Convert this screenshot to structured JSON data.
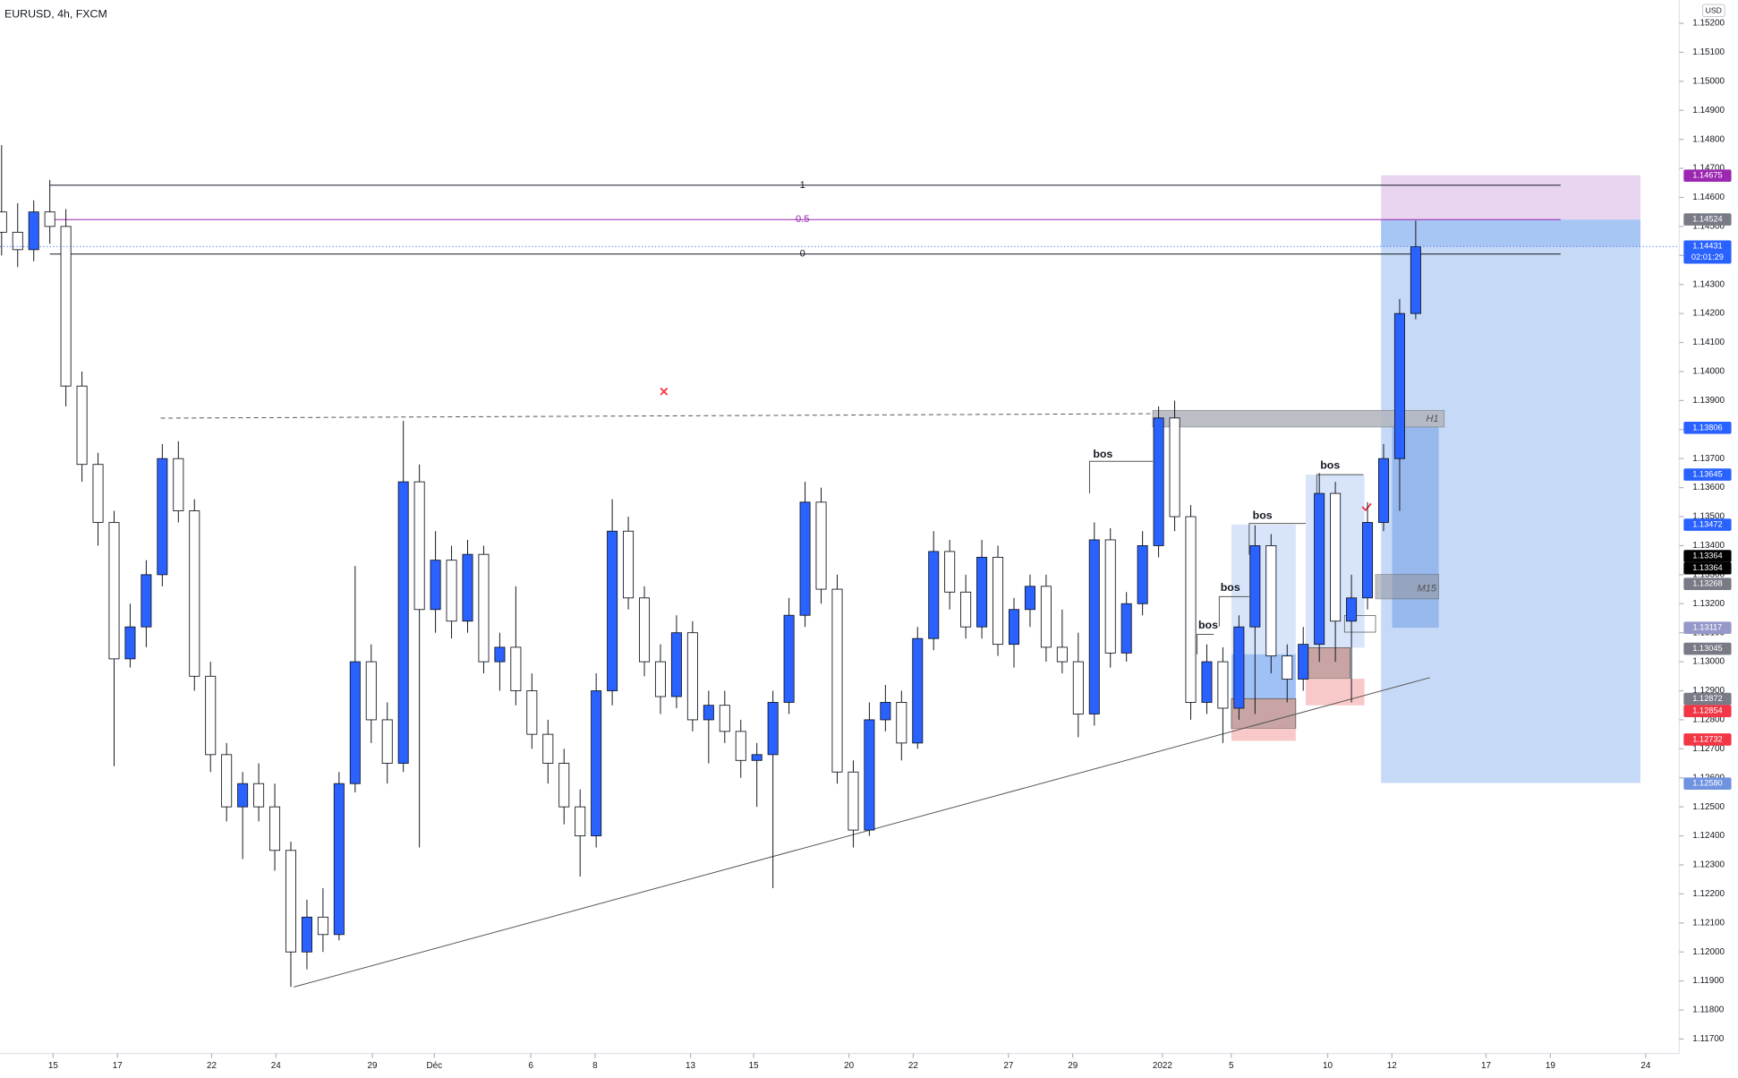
{
  "chart_data": {
    "type": "candlestick",
    "title": "EURUSD, 4h, FXCM",
    "y_unit": "USD",
    "up_color": "#2962ff",
    "down_color": "#ffffff",
    "wick_color": "#131722",
    "grid": false,
    "xlim": [
      -0.1,
      104.4
    ],
    "ylim": [
      1.1165,
      1.1528
    ],
    "xticks": [
      {
        "value": 3.21,
        "label": "15"
      },
      {
        "value": 7.21,
        "label": "17"
      },
      {
        "value": 13.07,
        "label": "22"
      },
      {
        "value": 17.07,
        "label": "24"
      },
      {
        "value": 23.07,
        "label": "29"
      },
      {
        "value": 26.93,
        "label": "Déc"
      },
      {
        "value": 32.93,
        "label": "6"
      },
      {
        "value": 36.93,
        "label": "8"
      },
      {
        "value": 42.87,
        "label": "13"
      },
      {
        "value": 46.8,
        "label": "15"
      },
      {
        "value": 52.73,
        "label": "20"
      },
      {
        "value": 56.73,
        "label": "22"
      },
      {
        "value": 62.66,
        "label": "27"
      },
      {
        "value": 66.66,
        "label": "29"
      },
      {
        "value": 72.24,
        "label": "2022"
      },
      {
        "value": 76.52,
        "label": "5"
      },
      {
        "value": 82.52,
        "label": "10"
      },
      {
        "value": 86.52,
        "label": "12"
      },
      {
        "value": 92.38,
        "label": "17"
      },
      {
        "value": 96.38,
        "label": "19"
      },
      {
        "value": 102.31,
        "label": "24"
      }
    ],
    "yticks": [
      {
        "value": 1.152,
        "label": "1.15200"
      },
      {
        "value": 1.151,
        "label": "1.15100"
      },
      {
        "value": 1.15,
        "label": "1.15000"
      },
      {
        "value": 1.149,
        "label": "1.14900"
      },
      {
        "value": 1.148,
        "label": "1.14800"
      },
      {
        "value": 1.147,
        "label": "1.14700"
      },
      {
        "value": 1.146,
        "label": "1.14600"
      },
      {
        "value": 1.145,
        "label": "1.14500"
      },
      {
        "value": 1.144,
        "label": "1.14400"
      },
      {
        "value": 1.143,
        "label": "1.14300"
      },
      {
        "value": 1.142,
        "label": "1.14200"
      },
      {
        "value": 1.141,
        "label": "1.14100"
      },
      {
        "value": 1.14,
        "label": "1.14000"
      },
      {
        "value": 1.139,
        "label": "1.13900"
      },
      {
        "value": 1.138,
        "label": "1.13800"
      },
      {
        "value": 1.137,
        "label": "1.13700"
      },
      {
        "value": 1.136,
        "label": "1.13600"
      },
      {
        "value": 1.135,
        "label": "1.13500"
      },
      {
        "value": 1.134,
        "label": "1.13400"
      },
      {
        "value": 1.133,
        "label": "1.13300"
      },
      {
        "value": 1.132,
        "label": "1.13200"
      },
      {
        "value": 1.131,
        "label": "1.13100"
      },
      {
        "value": 1.13,
        "label": "1.13000"
      },
      {
        "value": 1.129,
        "label": "1.12900"
      },
      {
        "value": 1.128,
        "label": "1.12800"
      },
      {
        "value": 1.127,
        "label": "1.12700"
      },
      {
        "value": 1.126,
        "label": "1.12600"
      },
      {
        "value": 1.125,
        "label": "1.12500"
      },
      {
        "value": 1.124,
        "label": "1.12400"
      },
      {
        "value": 1.123,
        "label": "1.12300"
      },
      {
        "value": 1.122,
        "label": "1.12200"
      },
      {
        "value": 1.121,
        "label": "1.12100"
      },
      {
        "value": 1.12,
        "label": "1.12000"
      },
      {
        "value": 1.119,
        "label": "1.11900"
      },
      {
        "value": 1.118,
        "label": "1.11800"
      },
      {
        "value": 1.117,
        "label": "1.11700"
      }
    ],
    "ohlc": [
      [
        1.1455,
        1.1478,
        1.144,
        1.1448
      ],
      [
        1.1448,
        1.1458,
        1.1436,
        1.1442
      ],
      [
        1.1442,
        1.1459,
        1.1438,
        1.1455
      ],
      [
        1.1455,
        1.1466,
        1.1444,
        1.145
      ],
      [
        1.145,
        1.1456,
        1.1388,
        1.1395
      ],
      [
        1.1395,
        1.14,
        1.1362,
        1.1368
      ],
      [
        1.1368,
        1.1372,
        1.134,
        1.1348
      ],
      [
        1.1348,
        1.1352,
        1.1264,
        1.1301
      ],
      [
        1.1301,
        1.132,
        1.1298,
        1.1312
      ],
      [
        1.1312,
        1.1335,
        1.1305,
        1.133
      ],
      [
        1.133,
        1.1375,
        1.1326,
        1.137
      ],
      [
        1.137,
        1.1376,
        1.1348,
        1.1352
      ],
      [
        1.1352,
        1.1356,
        1.129,
        1.1295
      ],
      [
        1.1295,
        1.13,
        1.1262,
        1.1268
      ],
      [
        1.1268,
        1.1272,
        1.1245,
        1.125
      ],
      [
        1.125,
        1.1262,
        1.1232,
        1.1258
      ],
      [
        1.1258,
        1.1265,
        1.1245,
        1.125
      ],
      [
        1.125,
        1.1258,
        1.1228,
        1.1235
      ],
      [
        1.1235,
        1.1238,
        1.1188,
        1.12
      ],
      [
        1.12,
        1.1218,
        1.1194,
        1.1212
      ],
      [
        1.1212,
        1.1222,
        1.12,
        1.1206
      ],
      [
        1.1206,
        1.1262,
        1.1204,
        1.1258
      ],
      [
        1.1258,
        1.1333,
        1.1255,
        1.13
      ],
      [
        1.13,
        1.1306,
        1.1272,
        1.128
      ],
      [
        1.128,
        1.1286,
        1.1258,
        1.1265
      ],
      [
        1.1265,
        1.1383,
        1.1262,
        1.1362
      ],
      [
        1.1362,
        1.1368,
        1.1236,
        1.1318
      ],
      [
        1.1318,
        1.1345,
        1.131,
        1.1335
      ],
      [
        1.1335,
        1.134,
        1.1308,
        1.1314
      ],
      [
        1.1314,
        1.1342,
        1.131,
        1.1337
      ],
      [
        1.1337,
        1.134,
        1.1296,
        1.13
      ],
      [
        1.13,
        1.131,
        1.129,
        1.1305
      ],
      [
        1.1305,
        1.1326,
        1.1285,
        1.129
      ],
      [
        1.129,
        1.1296,
        1.127,
        1.1275
      ],
      [
        1.1275,
        1.128,
        1.1258,
        1.1265
      ],
      [
        1.1265,
        1.127,
        1.1244,
        1.125
      ],
      [
        1.125,
        1.1256,
        1.1226,
        1.124
      ],
      [
        1.124,
        1.1296,
        1.1236,
        1.129
      ],
      [
        1.129,
        1.1356,
        1.1285,
        1.1345
      ],
      [
        1.1345,
        1.135,
        1.1318,
        1.1322
      ],
      [
        1.1322,
        1.1326,
        1.1295,
        1.13
      ],
      [
        1.13,
        1.1306,
        1.1282,
        1.1288
      ],
      [
        1.1288,
        1.1316,
        1.1284,
        1.131
      ],
      [
        1.131,
        1.1314,
        1.1276,
        1.128
      ],
      [
        1.128,
        1.129,
        1.1265,
        1.1285
      ],
      [
        1.1285,
        1.129,
        1.1272,
        1.1276
      ],
      [
        1.1276,
        1.128,
        1.126,
        1.1266
      ],
      [
        1.1266,
        1.1272,
        1.125,
        1.1268
      ],
      [
        1.1268,
        1.129,
        1.1222,
        1.1286
      ],
      [
        1.1286,
        1.1322,
        1.1282,
        1.1316
      ],
      [
        1.1316,
        1.1362,
        1.1312,
        1.1355
      ],
      [
        1.1355,
        1.136,
        1.132,
        1.1325
      ],
      [
        1.1325,
        1.133,
        1.1258,
        1.1262
      ],
      [
        1.1262,
        1.1266,
        1.1236,
        1.1242
      ],
      [
        1.1242,
        1.1286,
        1.124,
        1.128
      ],
      [
        1.128,
        1.1292,
        1.1276,
        1.1286
      ],
      [
        1.1286,
        1.129,
        1.1266,
        1.1272
      ],
      [
        1.1272,
        1.1312,
        1.127,
        1.1308
      ],
      [
        1.1308,
        1.1345,
        1.1304,
        1.1338
      ],
      [
        1.1338,
        1.1342,
        1.1318,
        1.1324
      ],
      [
        1.1324,
        1.133,
        1.1308,
        1.1312
      ],
      [
        1.1312,
        1.1342,
        1.1308,
        1.1336
      ],
      [
        1.1336,
        1.134,
        1.1302,
        1.1306
      ],
      [
        1.1306,
        1.1322,
        1.1298,
        1.1318
      ],
      [
        1.1318,
        1.133,
        1.1312,
        1.1326
      ],
      [
        1.1326,
        1.133,
        1.13,
        1.1305
      ],
      [
        1.1305,
        1.1318,
        1.1296,
        1.13
      ],
      [
        1.13,
        1.131,
        1.1274,
        1.1282
      ],
      [
        1.1282,
        1.1348,
        1.1278,
        1.1342
      ],
      [
        1.1342,
        1.1346,
        1.1298,
        1.1303
      ],
      [
        1.1303,
        1.1324,
        1.13,
        1.132
      ],
      [
        1.132,
        1.1345,
        1.1316,
        1.134
      ],
      [
        1.134,
        1.1388,
        1.1336,
        1.1384
      ],
      [
        1.1384,
        1.139,
        1.1345,
        1.135
      ],
      [
        1.135,
        1.1354,
        1.128,
        1.1286
      ],
      [
        1.1286,
        1.1306,
        1.1282,
        1.13
      ],
      [
        1.13,
        1.1305,
        1.1272,
        1.1284
      ],
      [
        1.1284,
        1.1316,
        1.128,
        1.1312
      ],
      [
        1.1312,
        1.1347,
        1.1282,
        1.134
      ],
      [
        1.134,
        1.1344,
        1.1296,
        1.1302
      ],
      [
        1.1302,
        1.1306,
        1.1286,
        1.1294
      ],
      [
        1.1294,
        1.1312,
        1.129,
        1.1306
      ],
      [
        1.1306,
        1.1365,
        1.13,
        1.1358
      ],
      [
        1.1358,
        1.1362,
        1.13,
        1.1314
      ],
      [
        1.1314,
        1.133,
        1.1286,
        1.1322
      ],
      [
        1.1322,
        1.1355,
        1.1318,
        1.1348
      ],
      [
        1.1348,
        1.1375,
        1.1345,
        1.137
      ],
      [
        1.137,
        1.1425,
        1.1352,
        1.142
      ],
      [
        1.142,
        1.1452,
        1.1418,
        1.1443
      ]
    ],
    "price_tags": [
      {
        "value": 1.14675,
        "label": "1.14675",
        "color": "#9c27b0"
      },
      {
        "value": 1.14524,
        "label": "1.14524",
        "color": "#787b86"
      },
      {
        "value": 1.14431,
        "label": "1.14431",
        "color": "#2962ff",
        "countdown": "02:01:29"
      },
      {
        "value": 1.13806,
        "label": "1.13806",
        "color": "#2962ff"
      },
      {
        "value": 1.13645,
        "label": "1.13645",
        "color": "#2962ff"
      },
      {
        "value": 1.13472,
        "label": "1.13472",
        "color": "#2962ff"
      },
      {
        "value": 1.13364,
        "label": "1.13364",
        "color": "#000000"
      },
      {
        "value": 1.13364,
        "label": "1.13364",
        "color": "#000000"
      },
      {
        "value": 1.13268,
        "label": "1.13268",
        "color": "#787b86"
      },
      {
        "value": 1.13117,
        "label": "1.13117",
        "color": "#9598c8"
      },
      {
        "value": 1.13045,
        "label": "1.13045",
        "color": "#787b86"
      },
      {
        "value": 1.12872,
        "label": "1.12872",
        "color": "#787b86"
      },
      {
        "value": 1.12854,
        "label": "1.12854",
        "color": "#f23645"
      },
      {
        "value": 1.12732,
        "label": "1.12732",
        "color": "#f23645"
      },
      {
        "value": 1.1258,
        "label": "1.12580",
        "color": "#6f93e0"
      }
    ],
    "annotations": {
      "fib": [
        "1",
        "0.5",
        "0"
      ],
      "bos": [
        "bos",
        "bos",
        "bos",
        "bos",
        "bos"
      ],
      "zones": [
        "H1",
        "M15"
      ]
    }
  }
}
